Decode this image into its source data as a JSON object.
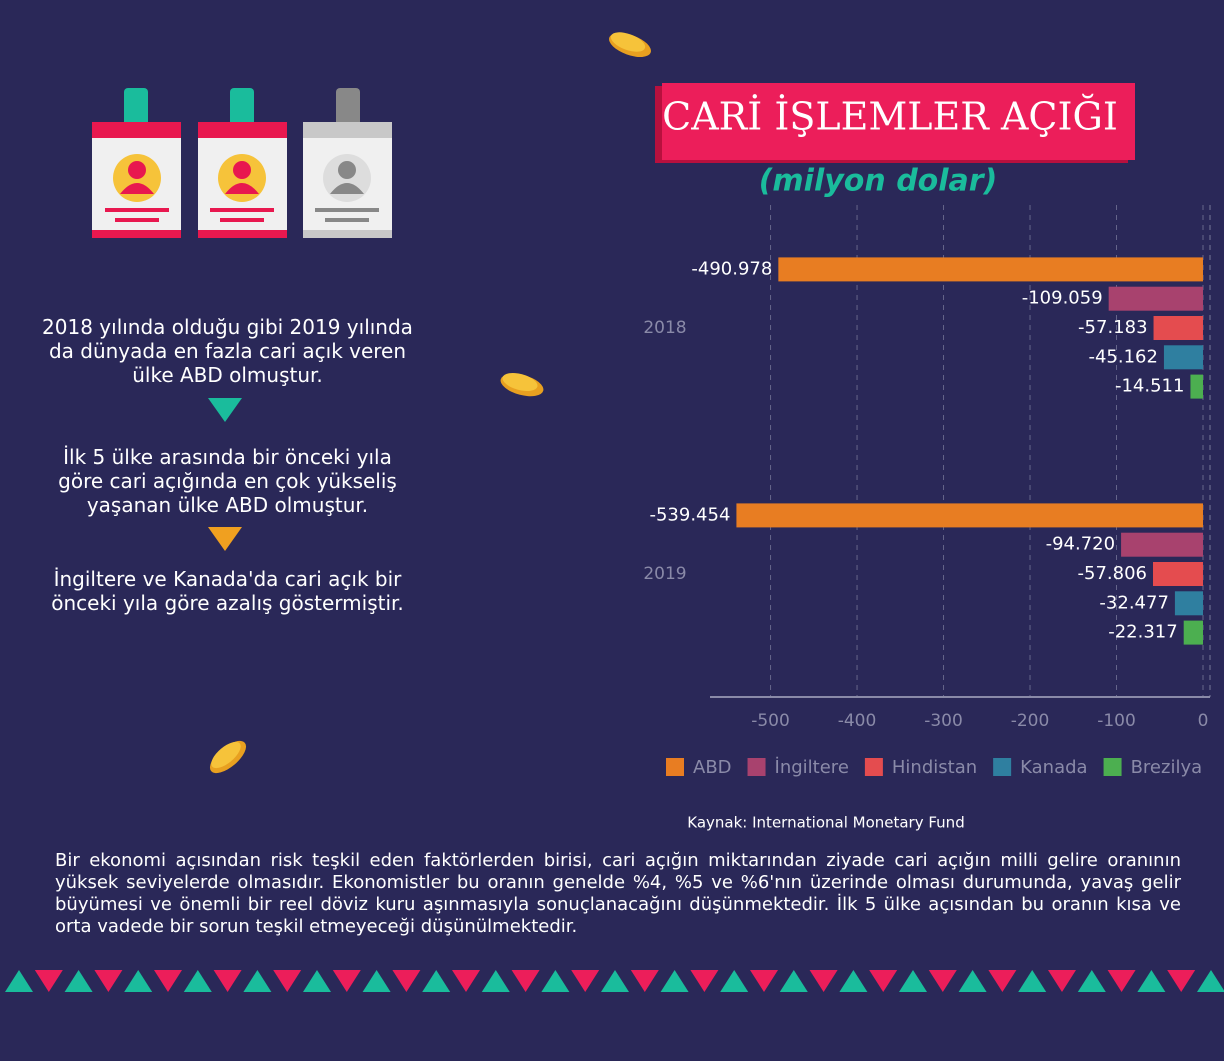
{
  "chart_data": {
    "type": "bar",
    "orientation": "horizontal",
    "title": "CARİ İŞLEMLER AÇIĞI",
    "subtitle": "(milyon dolar)",
    "categories": [
      "2018",
      "2019"
    ],
    "series": [
      {
        "name": "ABD",
        "color": "#e87d22",
        "values": [
          -490.978,
          -539.454
        ],
        "value_labels": [
          "-490.978",
          "-539.454"
        ]
      },
      {
        "name": "İngiltere",
        "color": "#a8426e",
        "values": [
          -109.059,
          -94.72
        ],
        "value_labels": [
          "-109.059",
          "-94.720"
        ]
      },
      {
        "name": "Hindistan",
        "color": "#e44c4f",
        "values": [
          -57.183,
          -57.806
        ],
        "value_labels": [
          "-57.183",
          "-57.806"
        ]
      },
      {
        "name": "Kanada",
        "color": "#2f7fa0",
        "values": [
          -45.162,
          -32.477
        ],
        "value_labels": [
          "-45.162",
          "-32.477"
        ]
      },
      {
        "name": "Brezilya",
        "color": "#4caf50",
        "values": [
          -14.511,
          -22.317
        ],
        "value_labels": [
          "-14.511",
          "-22.317"
        ]
      }
    ],
    "xlim": [
      -570,
      0
    ],
    "xticks": [
      -500,
      -400,
      -300,
      -200,
      -100,
      0
    ],
    "grid": true,
    "legend": "bottom",
    "source": "Kaynak: International Monetary Fund"
  },
  "notes": [
    "2018 yılında olduğu gibi 2019 yılında da dünyada en fazla cari açık veren ülke ABD olmuştur.",
    "İlk 5 ülke arasında bir önceki yıla göre cari açığında en çok yükseliş yaşanan ülke ABD olmuştur.",
    "İngiltere ve Kanada'da cari açık bir önceki yıla göre azalış göstermiştir."
  ],
  "footer_text": "Bir ekonomi açısından risk teşkil eden faktörlerden birisi, cari açığın miktarından ziyade cari açığın milli gelire oranının yüksek seviyelerde olmasıdır. Ekonomistler bu oranın genelde %4, %5 ve %6'nın üzerinde olması durumunda, yavaş gelir büyümesi ve önemli bir reel döviz kuru aşınmasıyla sonuçlanacağını düşünmektedir. İlk 5 ülke açısından bu oranın kısa ve orta vadede bir sorun teşkil etmeyeceği düşünülmektedir."
}
